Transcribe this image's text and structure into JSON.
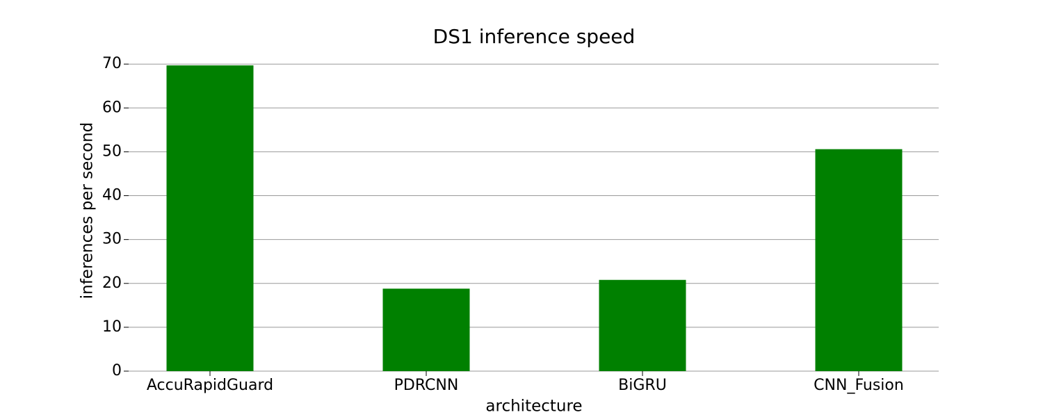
{
  "chart_data": {
    "type": "bar",
    "title": "DS1 inference speed",
    "x_label": "architecture",
    "y_label": "inferences per second",
    "categories": [
      "AccuRapidGuard",
      "PDRCNN",
      "BiGRU",
      "CNN_Fusion"
    ],
    "values": [
      69.7,
      18.8,
      20.8,
      50.6
    ],
    "color": "#008000",
    "ylim": [
      0,
      73.2
    ],
    "yticks": [
      0,
      10,
      20,
      30,
      40,
      50,
      60,
      70
    ],
    "grid": true
  }
}
